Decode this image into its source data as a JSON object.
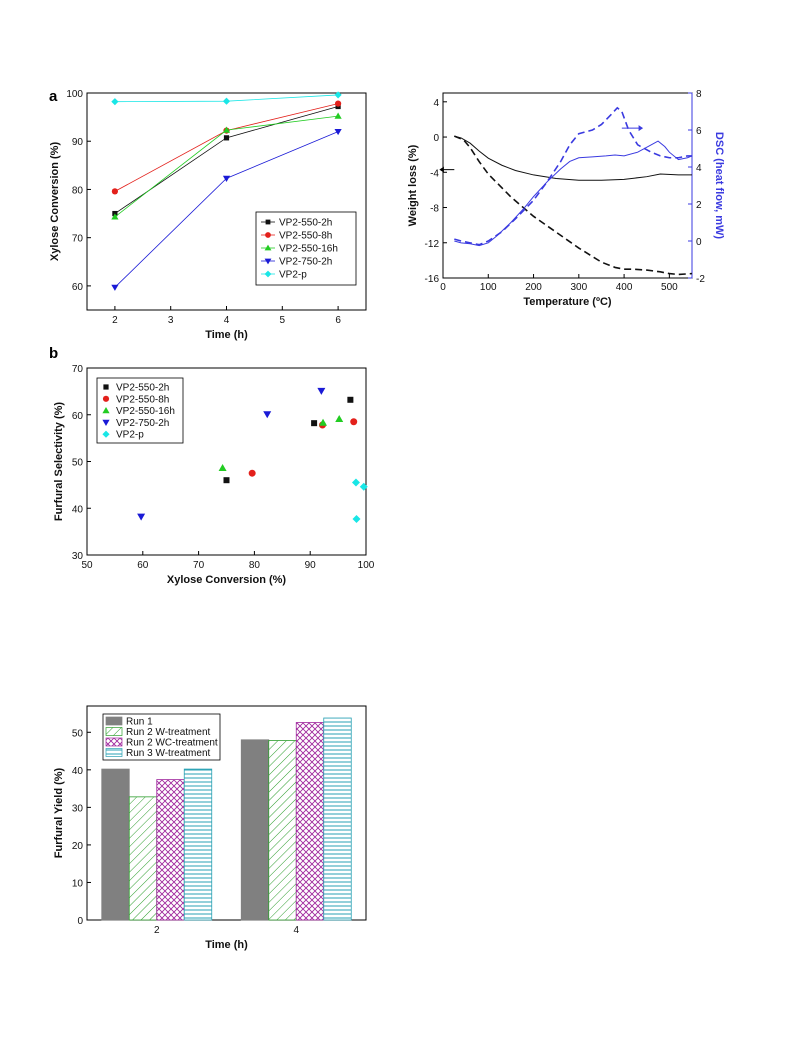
{
  "colors": {
    "black": "#111111",
    "red": "#e3201b",
    "green": "#22cc22",
    "blue": "#1a1ad6",
    "cyan": "#19e6e6",
    "dsc": "#3a3ae0",
    "bar_gray": "#808080",
    "bar_green": "#2e9e2e",
    "bar_purple": "#a0289e",
    "bar_teal": "#2aa2b4"
  },
  "chart_data": [
    {
      "id": "a",
      "type": "line",
      "panel_label": "a",
      "xlabel": "Time (h)",
      "ylabel": "Xylose Conversion (%)",
      "xlim": [
        1.5,
        6.5
      ],
      "ylim": [
        55,
        100
      ],
      "xticks": [
        2,
        3,
        4,
        5,
        6
      ],
      "yticks": [
        60,
        70,
        80,
        90,
        100
      ],
      "legend_position": "bottom-right",
      "x": [
        2,
        4,
        6
      ],
      "series": [
        {
          "name": "VP2-550-2h",
          "values": [
            75.0,
            90.7,
            97.2
          ],
          "color": "black",
          "marker": "square"
        },
        {
          "name": "VP2-550-8h",
          "values": [
            79.6,
            92.2,
            97.8
          ],
          "color": "red",
          "marker": "circle"
        },
        {
          "name": "VP2-550-16h",
          "values": [
            74.3,
            92.3,
            95.2
          ],
          "color": "green",
          "marker": "triangle-up"
        },
        {
          "name": "VP2-750-2h",
          "values": [
            59.7,
            82.3,
            92.0
          ],
          "color": "blue",
          "marker": "triangle-down"
        },
        {
          "name": "VP2-p",
          "values": [
            98.2,
            98.3,
            99.6
          ],
          "color": "cyan",
          "marker": "diamond"
        }
      ]
    },
    {
      "id": "tga",
      "type": "line",
      "xlabel": "Temperature (ºC)",
      "ylabel_left": "Weight loss (%)",
      "ylabel_right": "DSC (heat flow, mW)",
      "xlim": [
        0,
        550
      ],
      "ylim_left": [
        -16,
        5
      ],
      "ylim_right": [
        -2,
        8
      ],
      "xticks": [
        0,
        100,
        200,
        300,
        400,
        500
      ],
      "yticks_left": [
        4,
        0,
        -4,
        -8,
        -12,
        -16
      ],
      "yticks_right": [
        8,
        6,
        4,
        2,
        0,
        -2
      ],
      "series": [
        {
          "axis": "left",
          "style": "solid",
          "color": "black",
          "x": [
            25,
            40,
            60,
            80,
            100,
            130,
            160,
            200,
            250,
            300,
            350,
            400,
            450,
            480,
            520,
            550
          ],
          "values": [
            0.1,
            -0.1,
            -0.7,
            -1.6,
            -2.4,
            -3.2,
            -3.8,
            -4.3,
            -4.7,
            -4.9,
            -4.9,
            -4.8,
            -4.5,
            -4.2,
            -4.3,
            -4.3
          ]
        },
        {
          "axis": "left",
          "style": "dashed",
          "color": "black",
          "x": [
            25,
            45,
            60,
            80,
            100,
            150,
            200,
            250,
            300,
            350,
            380,
            400,
            420,
            450,
            480,
            500,
            520,
            550
          ],
          "values": [
            0.1,
            -0.3,
            -1.2,
            -2.8,
            -4.2,
            -6.8,
            -9.0,
            -10.8,
            -12.6,
            -14.2,
            -14.8,
            -15.0,
            -15.0,
            -15.1,
            -15.3,
            -15.5,
            -15.6,
            -15.5
          ]
        },
        {
          "axis": "right",
          "style": "solid",
          "color": "dsc",
          "x": [
            25,
            40,
            60,
            80,
            100,
            120,
            150,
            180,
            200,
            230,
            260,
            280,
            300,
            330,
            360,
            380,
            400,
            430,
            460,
            475,
            490,
            500,
            520,
            540,
            550
          ],
          "values": [
            0.0,
            -0.1,
            -0.15,
            -0.25,
            -0.1,
            0.3,
            1.0,
            1.8,
            2.4,
            3.2,
            3.9,
            4.3,
            4.5,
            4.55,
            4.6,
            4.65,
            4.6,
            4.8,
            5.2,
            5.4,
            5.1,
            4.8,
            4.4,
            4.5,
            4.6
          ]
        },
        {
          "axis": "right",
          "style": "dashed",
          "color": "dsc",
          "x": [
            25,
            40,
            60,
            80,
            100,
            130,
            160,
            200,
            230,
            260,
            280,
            300,
            330,
            350,
            370,
            385,
            395,
            410,
            430,
            460,
            480,
            500,
            520,
            540,
            550
          ],
          "values": [
            0.1,
            0.0,
            -0.1,
            -0.2,
            0.0,
            0.5,
            1.2,
            2.2,
            3.2,
            4.3,
            5.2,
            5.8,
            6.0,
            6.3,
            6.8,
            7.2,
            7.0,
            6.0,
            5.2,
            4.8,
            4.6,
            4.5,
            4.5,
            4.6,
            4.6
          ]
        }
      ]
    },
    {
      "id": "b",
      "type": "scatter",
      "panel_label": "b",
      "xlabel": "Xylose Conversion (%)",
      "ylabel": "Furfural Selectivity (%)",
      "xlim": [
        50,
        100
      ],
      "ylim": [
        30,
        70
      ],
      "xticks": [
        50,
        60,
        70,
        80,
        90,
        100
      ],
      "yticks": [
        30,
        40,
        50,
        60,
        70
      ],
      "legend_position": "top-left",
      "series": [
        {
          "name": "VP2-550-2h",
          "color": "black",
          "marker": "square",
          "points": [
            [
              75.0,
              46.0
            ],
            [
              90.7,
              58.2
            ],
            [
              97.2,
              63.2
            ]
          ]
        },
        {
          "name": "VP2-550-8h",
          "color": "red",
          "marker": "circle",
          "points": [
            [
              79.6,
              47.5
            ],
            [
              92.2,
              57.8
            ],
            [
              97.8,
              58.5
            ]
          ]
        },
        {
          "name": "VP2-550-16h",
          "color": "green",
          "marker": "triangle-up",
          "points": [
            [
              74.3,
              48.6
            ],
            [
              92.3,
              58.3
            ],
            [
              95.2,
              59.1
            ]
          ]
        },
        {
          "name": "VP2-750-2h",
          "color": "blue",
          "marker": "triangle-down",
          "points": [
            [
              59.7,
              38.2
            ],
            [
              82.3,
              60.1
            ],
            [
              92.0,
              65.1
            ]
          ]
        },
        {
          "name": "VP2-p",
          "color": "cyan",
          "marker": "diamond",
          "points": [
            [
              98.2,
              45.5
            ],
            [
              98.3,
              37.7
            ],
            [
              99.6,
              44.6
            ]
          ]
        }
      ]
    },
    {
      "id": "c",
      "type": "bar",
      "xlabel": "Time (h)",
      "ylabel": "Furfural Yield (%)",
      "ylim": [
        0,
        57
      ],
      "yticks": [
        0,
        10,
        20,
        30,
        40,
        50
      ],
      "categories": [
        "2",
        "4"
      ],
      "legend_position": "top-left",
      "series": [
        {
          "name": "Run 1",
          "values": [
            40.2,
            48.0
          ],
          "pattern": "solid-gray"
        },
        {
          "name": "Run 2 W-treatment",
          "values": [
            32.8,
            47.8
          ],
          "pattern": "diag-green"
        },
        {
          "name": "Run 2 WC-treatment",
          "values": [
            37.4,
            52.6
          ],
          "pattern": "cross-purple"
        },
        {
          "name": "Run 3 W-treatment",
          "values": [
            40.2,
            53.8
          ],
          "pattern": "hline-teal"
        }
      ]
    }
  ]
}
